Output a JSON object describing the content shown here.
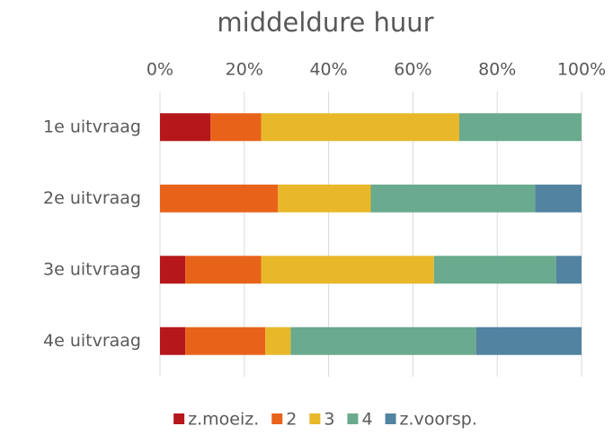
{
  "chart_data": {
    "type": "stacked-bar-horizontal",
    "title": "middeldure huur",
    "categories": [
      "1e uitvraag",
      "2e uitvraag",
      "3e uitvraag",
      "4e uitvraag"
    ],
    "series": [
      {
        "name": "z.moeiz.",
        "color": "#b5171b",
        "values": [
          12,
          0,
          6,
          6
        ]
      },
      {
        "name": "2",
        "color": "#e8631a",
        "values": [
          12,
          28,
          18,
          19
        ]
      },
      {
        "name": "3",
        "color": "#e8b82a",
        "values": [
          47,
          22,
          41,
          6
        ]
      },
      {
        "name": "4",
        "color": "#6aaa8e",
        "values": [
          29,
          39,
          29,
          44
        ]
      },
      {
        "name": "z.voorsp.",
        "color": "#5283a0",
        "values": [
          0,
          11,
          6,
          25
        ]
      }
    ],
    "xlim": [
      0,
      100
    ],
    "xticks": [
      {
        "value": 0,
        "label": "0%"
      },
      {
        "value": 20,
        "label": "20%"
      },
      {
        "value": 40,
        "label": "40%"
      },
      {
        "value": 60,
        "label": "60%"
      },
      {
        "value": 80,
        "label": "80%"
      },
      {
        "value": 100,
        "label": "100%"
      }
    ],
    "grid": true,
    "legend": "bottom"
  }
}
